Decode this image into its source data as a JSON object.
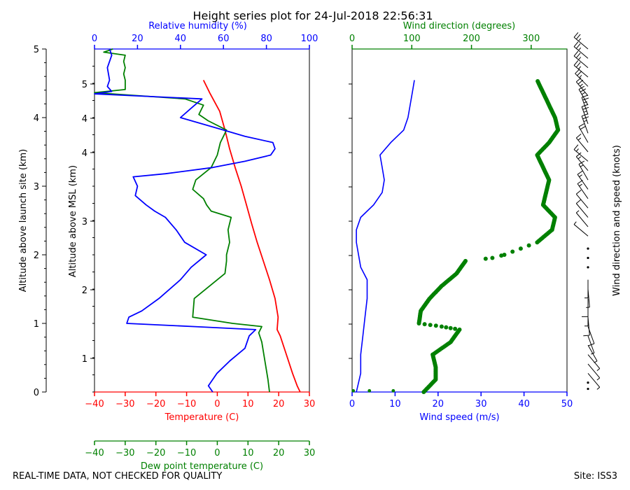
{
  "title": "Height series plot for 24-Jul-2018 22:56:31",
  "footer": {
    "left": "REAL-TIME DATA, NOT CHECKED FOR QUALITY",
    "right": "Site: ISS3"
  },
  "colors": {
    "temperature": "#ff0000",
    "dewpoint": "#008000",
    "humidity": "#0000ff",
    "wind_speed": "#0000ff",
    "wind_direction": "#008000",
    "barbs": "#000000"
  },
  "chart_data": [
    {
      "type": "line",
      "name": "thermo-panel",
      "ylabel_left": "Altitude above launch site (km)",
      "ylabel_inner": "Altitude above MSL (km)",
      "y_agl_ticks": [
        "0",
        "1",
        "2",
        "3",
        "4",
        "5"
      ],
      "y_msl_ticks": [
        "1",
        "2",
        "3",
        "4",
        "4",
        "5"
      ],
      "temperature_axis": {
        "label": "Temperature (C)",
        "range": [
          -40,
          30
        ],
        "ticks": [
          "−40",
          "−30",
          "−20",
          "−10",
          "0",
          "10",
          "20",
          "30"
        ]
      },
      "dewpoint_axis": {
        "label": "Dew point temperature (C)",
        "range": [
          -40,
          30
        ],
        "ticks": [
          "−40",
          "−30",
          "−20",
          "−10",
          "0",
          "10",
          "20",
          "30"
        ]
      },
      "humidity_axis": {
        "label": "Relative humidity (%)",
        "range": [
          0,
          100
        ],
        "ticks": [
          "0",
          "20",
          "40",
          "60",
          "80",
          "100"
        ]
      },
      "altitude_range_km": [
        0,
        5
      ],
      "series": [
        {
          "name": "Temperature",
          "axis": "temperature",
          "alt": [
            0,
            0.1,
            0.3,
            0.6,
            0.9,
            1.0,
            1.2,
            1.5,
            1.8,
            2.1,
            2.4,
            2.7,
            3.0,
            3.3,
            3.6,
            3.9,
            4.2,
            4.5,
            4.8,
            5.0
          ],
          "values": [
            27,
            26,
            24.5,
            22.5,
            20.5,
            19.5,
            19.8,
            18.8,
            17,
            15,
            13,
            11.2,
            9.5,
            7.8,
            5.8,
            4,
            2.5,
            0.8,
            -2.5,
            -4.5
          ]
        },
        {
          "name": "Dew point",
          "axis": "dewpoint",
          "alt": [
            0,
            0.2,
            0.5,
            0.8,
            0.95,
            1.05,
            1.1,
            1.2,
            1.5,
            1.9,
            2.1,
            2.2,
            2.4,
            2.6,
            2.8,
            2.9,
            3.0,
            3.1,
            3.25,
            3.4,
            3.6,
            3.8,
            4.0,
            4.2,
            4.35,
            4.45,
            4.6,
            4.7,
            4.8,
            4.85,
            5.0,
            5.1,
            5.2,
            5.3,
            5.4,
            5.45,
            5.5
          ],
          "values": [
            17,
            16.5,
            15.5,
            14.5,
            13.5,
            14.5,
            5,
            -8,
            -7.5,
            2.5,
            3,
            3,
            4,
            3.5,
            4.5,
            -2,
            -3.5,
            -4.5,
            -8,
            -7,
            -2,
            0,
            1,
            3,
            -3,
            -6,
            -4.5,
            -10.5,
            -40,
            -30,
            -30,
            -30.5,
            -30,
            -30.5,
            -30,
            -37,
            -34
          ]
        },
        {
          "name": "Relative humidity",
          "axis": "humidity",
          "alt": [
            0,
            0.1,
            0.3,
            0.5,
            0.7,
            0.9,
            1.0,
            1.05,
            1.1,
            1.2,
            1.3,
            1.5,
            1.8,
            2.0,
            2.2,
            2.4,
            2.6,
            2.8,
            2.9,
            3.0,
            3.15,
            3.3,
            3.45,
            3.5,
            3.6,
            3.7,
            3.8,
            3.9,
            4.0,
            4.1,
            4.2,
            4.4,
            4.55,
            4.7,
            4.78,
            4.82,
            4.9,
            5.0,
            5.2,
            5.4,
            5.5
          ],
          "values": [
            55,
            53,
            57,
            63,
            70,
            72,
            75,
            46,
            15,
            16,
            22,
            30,
            40,
            45,
            52,
            42,
            38,
            33,
            28,
            24,
            19,
            20,
            18,
            33,
            55,
            70,
            82,
            84,
            83,
            70,
            60,
            40,
            45,
            50,
            0,
            8,
            6,
            7,
            6,
            8,
            7
          ]
        }
      ]
    },
    {
      "type": "line",
      "name": "wind-panel",
      "altitude_range_km": [
        0,
        5
      ],
      "speed_axis": {
        "label": "Wind speed (m/s)",
        "range": [
          0,
          50
        ],
        "ticks": [
          "0",
          "10",
          "20",
          "30",
          "40",
          "50"
        ]
      },
      "direction_axis": {
        "label": "Wind direction (degrees)",
        "range": [
          0,
          360
        ],
        "ticks": [
          "0",
          "100",
          "200",
          "300"
        ]
      },
      "barb_label": "Wind direction and speed (knots)",
      "series": [
        {
          "name": "Wind speed",
          "axis": "speed",
          "alt": [
            0,
            0.3,
            0.6,
            0.9,
            1.2,
            1.5,
            1.8,
            2.0,
            2.2,
            2.4,
            2.6,
            2.8,
            3.0,
            3.2,
            3.4,
            3.6,
            3.8,
            4.0,
            4.2,
            4.4,
            4.6,
            4.8,
            5.0
          ],
          "values": [
            1,
            2,
            2,
            2.5,
            3,
            3.5,
            3.5,
            2,
            1.5,
            1,
            1,
            2,
            5,
            7,
            7.5,
            7,
            6.5,
            9,
            12,
            13,
            13.5,
            14,
            14.5
          ]
        },
        {
          "name": "Wind direction",
          "axis": "direction",
          "alt": [
            0,
            0.2,
            0.4,
            0.6,
            0.8,
            1.0,
            1.05,
            1.1,
            1.3,
            1.5,
            1.7,
            1.9,
            2.1,
            2.15,
            2.2,
            2.4,
            2.6,
            2.8,
            3.0,
            3.2,
            3.4,
            3.6,
            3.8,
            4.0,
            4.2,
            4.4,
            4.6,
            4.8,
            5.0
          ],
          "values": [
            120,
            140,
            140,
            135,
            165,
            180,
            150,
            112,
            115,
            130,
            150,
            175,
            190,
            235,
            255,
            310,
            335,
            340,
            320,
            325,
            330,
            320,
            310,
            330,
            345,
            340,
            330,
            320,
            310
          ]
        }
      ],
      "barbs": [
        {
          "alt": 0.05,
          "dir": 120,
          "kt": 0
        },
        {
          "alt": 0.15,
          "dir": 130,
          "kt": 0
        },
        {
          "alt": 0.3,
          "dir": 140,
          "kt": 5
        },
        {
          "alt": 0.45,
          "dir": 140,
          "kt": 5
        },
        {
          "alt": 0.6,
          "dir": 140,
          "kt": 5
        },
        {
          "alt": 0.75,
          "dir": 150,
          "kt": 5
        },
        {
          "alt": 0.9,
          "dir": 160,
          "kt": 5
        },
        {
          "alt": 1.05,
          "dir": 160,
          "kt": 10
        },
        {
          "alt": 1.2,
          "dir": 175,
          "kt": 10
        },
        {
          "alt": 1.35,
          "dir": 180,
          "kt": 5
        },
        {
          "alt": 1.5,
          "dir": 180,
          "kt": 10
        },
        {
          "alt": 1.65,
          "dir": 175,
          "kt": 5
        },
        {
          "alt": 1.8,
          "dir": 180,
          "kt": 5
        },
        {
          "alt": 2.0,
          "dir": 190,
          "kt": 0
        },
        {
          "alt": 2.15,
          "dir": 240,
          "kt": 0
        },
        {
          "alt": 2.3,
          "dir": 300,
          "kt": 0
        },
        {
          "alt": 2.5,
          "dir": 310,
          "kt": 5
        },
        {
          "alt": 2.65,
          "dir": 320,
          "kt": 5
        },
        {
          "alt": 2.8,
          "dir": 320,
          "kt": 10
        },
        {
          "alt": 2.95,
          "dir": 320,
          "kt": 10
        },
        {
          "alt": 3.1,
          "dir": 325,
          "kt": 15
        },
        {
          "alt": 3.25,
          "dir": 325,
          "kt": 15
        },
        {
          "alt": 3.4,
          "dir": 330,
          "kt": 15
        },
        {
          "alt": 3.55,
          "dir": 320,
          "kt": 15
        },
        {
          "alt": 3.7,
          "dir": 310,
          "kt": 15
        },
        {
          "alt": 3.85,
          "dir": 320,
          "kt": 15
        },
        {
          "alt": 4.0,
          "dir": 330,
          "kt": 20
        },
        {
          "alt": 4.15,
          "dir": 340,
          "kt": 25
        },
        {
          "alt": 4.3,
          "dir": 340,
          "kt": 25
        },
        {
          "alt": 4.45,
          "dir": 340,
          "kt": 25
        },
        {
          "alt": 4.6,
          "dir": 330,
          "kt": 25
        },
        {
          "alt": 4.75,
          "dir": 320,
          "kt": 25
        },
        {
          "alt": 4.9,
          "dir": 315,
          "kt": 25
        },
        {
          "alt": 5.05,
          "dir": 310,
          "kt": 25
        },
        {
          "alt": 5.2,
          "dir": 310,
          "kt": 25
        },
        {
          "alt": 5.35,
          "dir": 310,
          "kt": 25
        },
        {
          "alt": 5.5,
          "dir": 310,
          "kt": 25
        }
      ]
    }
  ]
}
